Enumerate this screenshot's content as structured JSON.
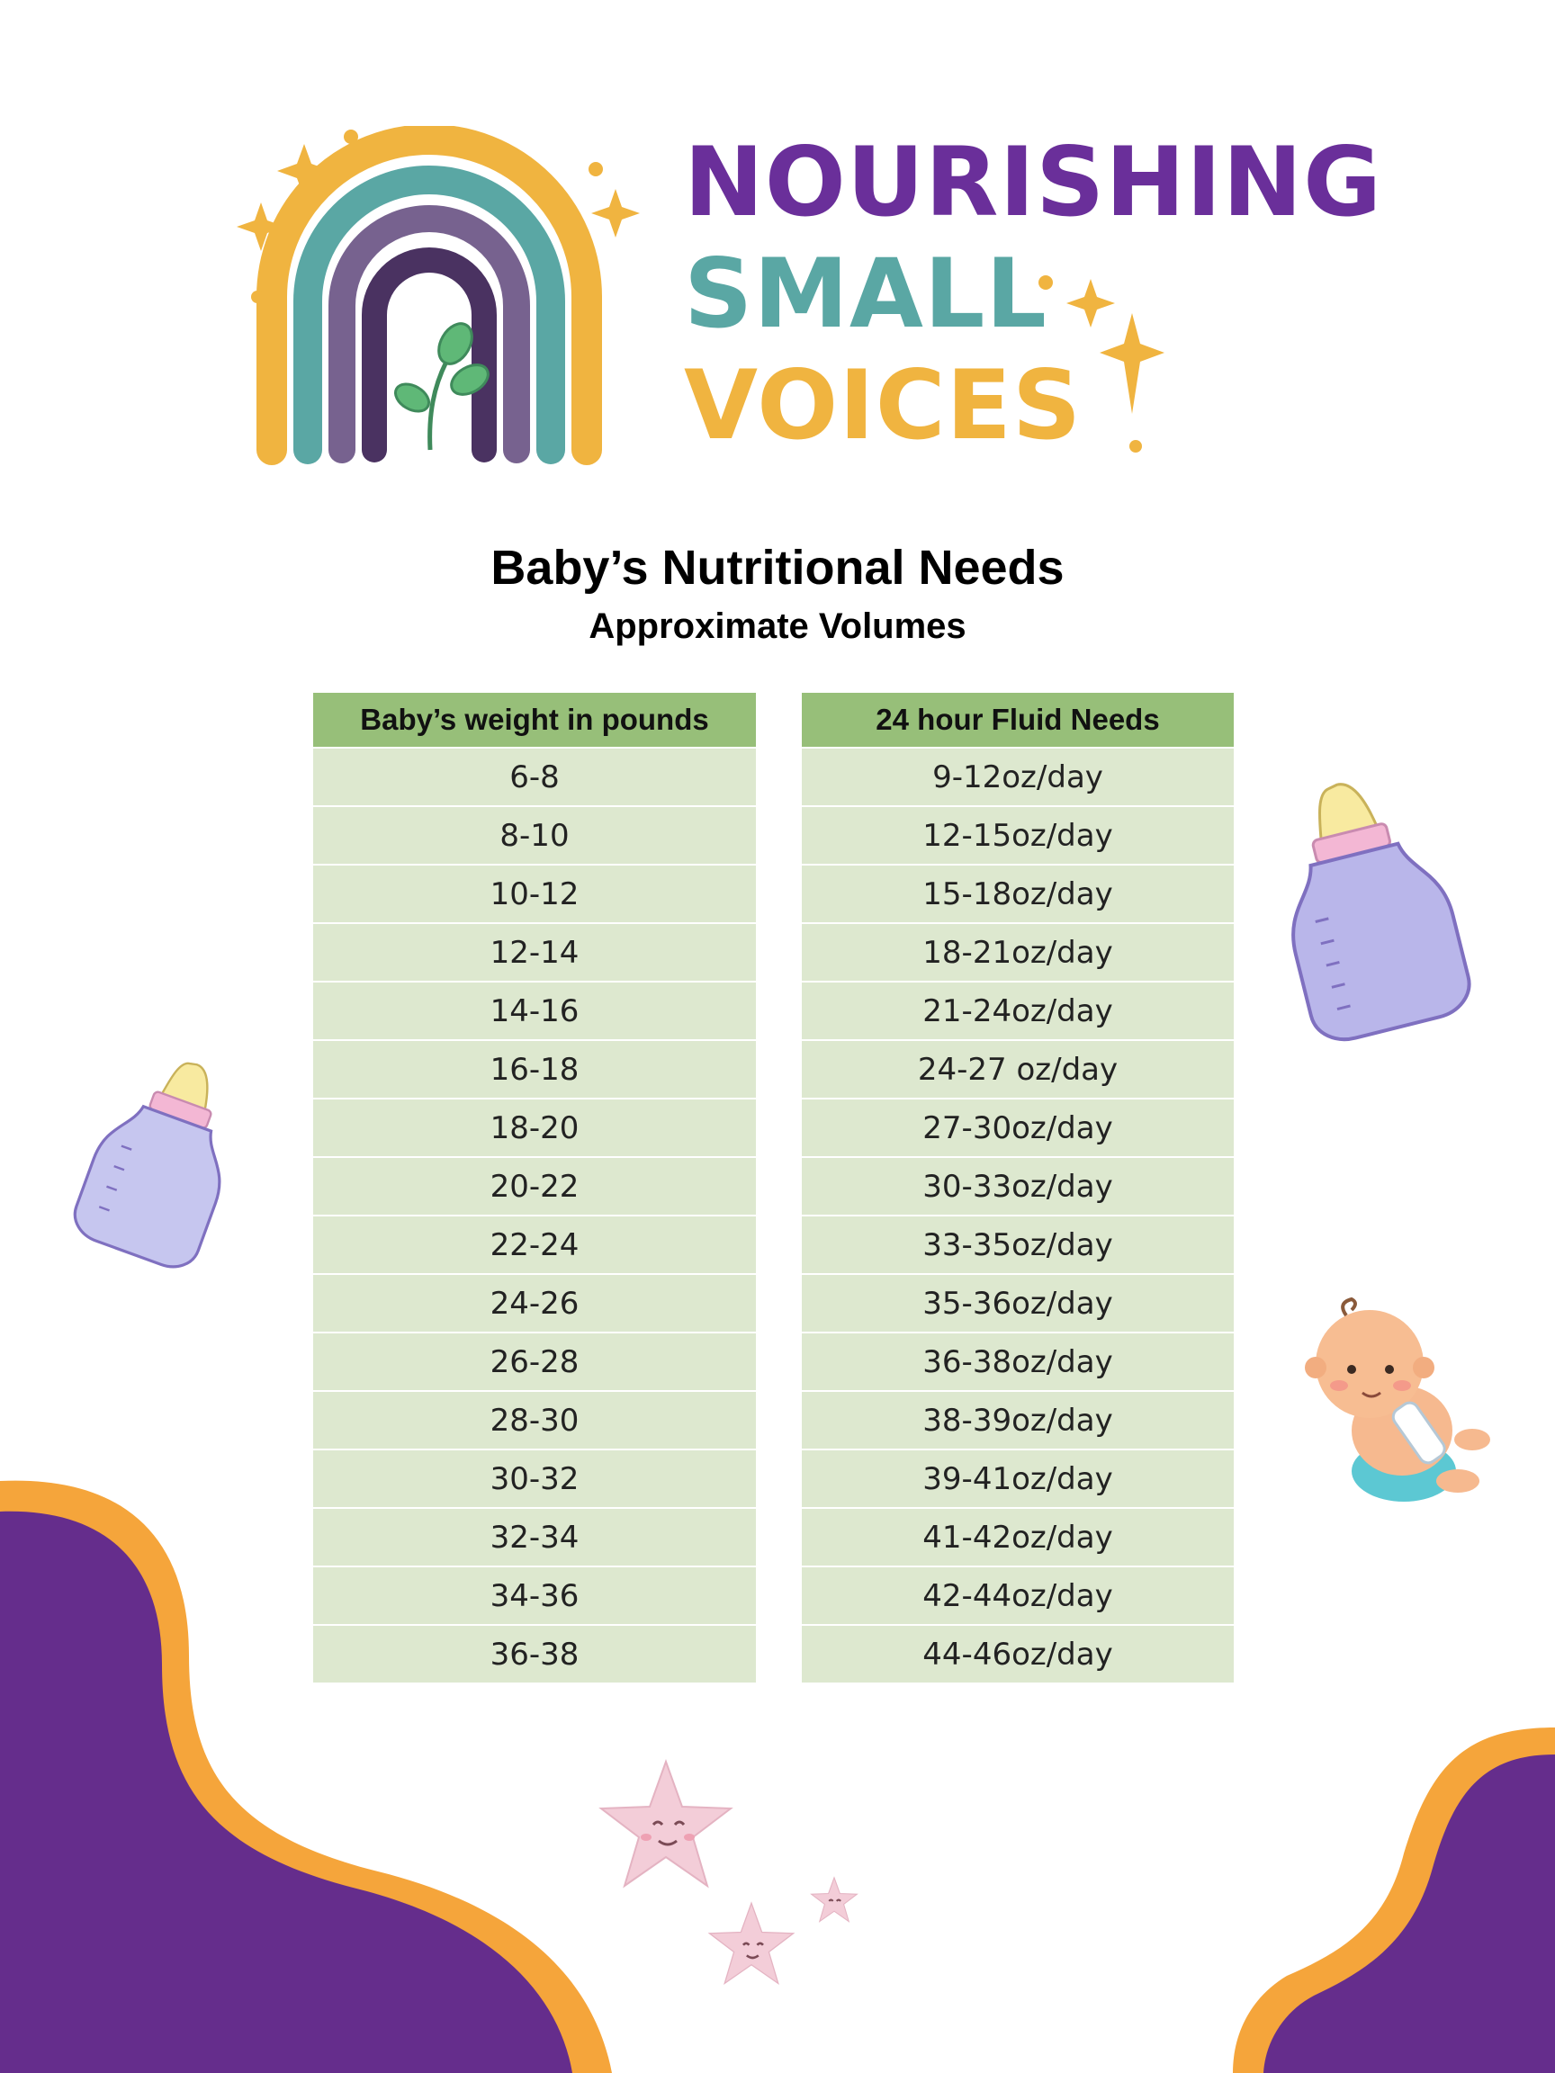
{
  "brand": {
    "line1": "NOURISHING",
    "line2": "SMALL",
    "line3": "VOICES",
    "colors": {
      "purple": "#6a2f9a",
      "teal": "#5aa7a4",
      "gold": "#f0b440"
    }
  },
  "title": "Baby’s Nutritional Needs",
  "subtitle": "Approximate Volumes",
  "table": {
    "weight_header": "Baby’s weight in pounds",
    "fluid_header": "24 hour Fluid Needs",
    "rows": [
      {
        "weight": "6-8",
        "fluid": "9-12oz/day"
      },
      {
        "weight": "8-10",
        "fluid": "12-15oz/day"
      },
      {
        "weight": "10-12",
        "fluid": "15-18oz/day"
      },
      {
        "weight": "12-14",
        "fluid": "18-21oz/day"
      },
      {
        "weight": "14-16",
        "fluid": "21-24oz/day"
      },
      {
        "weight": "16-18",
        "fluid": "24-27 oz/day"
      },
      {
        "weight": "18-20",
        "fluid": "27-30oz/day"
      },
      {
        "weight": "20-22",
        "fluid": "30-33oz/day"
      },
      {
        "weight": "22-24",
        "fluid": "33-35oz/day"
      },
      {
        "weight": "24-26",
        "fluid": "35-36oz/day"
      },
      {
        "weight": "26-28",
        "fluid": "36-38oz/day"
      },
      {
        "weight": "28-30",
        "fluid": "38-39oz/day"
      },
      {
        "weight": "30-32",
        "fluid": "39-41oz/day"
      },
      {
        "weight": "32-34",
        "fluid": "41-42oz/day"
      },
      {
        "weight": "34-36",
        "fluid": "42-44oz/day"
      },
      {
        "weight": "36-38",
        "fluid": "44-46oz/day"
      }
    ],
    "header_color": "#97bf79",
    "cell_color": "#dde8cf"
  },
  "decor": {
    "corner_purple": "#652d8c",
    "corner_orange": "#f5a53b",
    "icons": [
      "rainbow-icon",
      "sprout-icon",
      "sparkle-icon",
      "baby-bottle-icon",
      "baby-icon",
      "star-icon"
    ]
  }
}
